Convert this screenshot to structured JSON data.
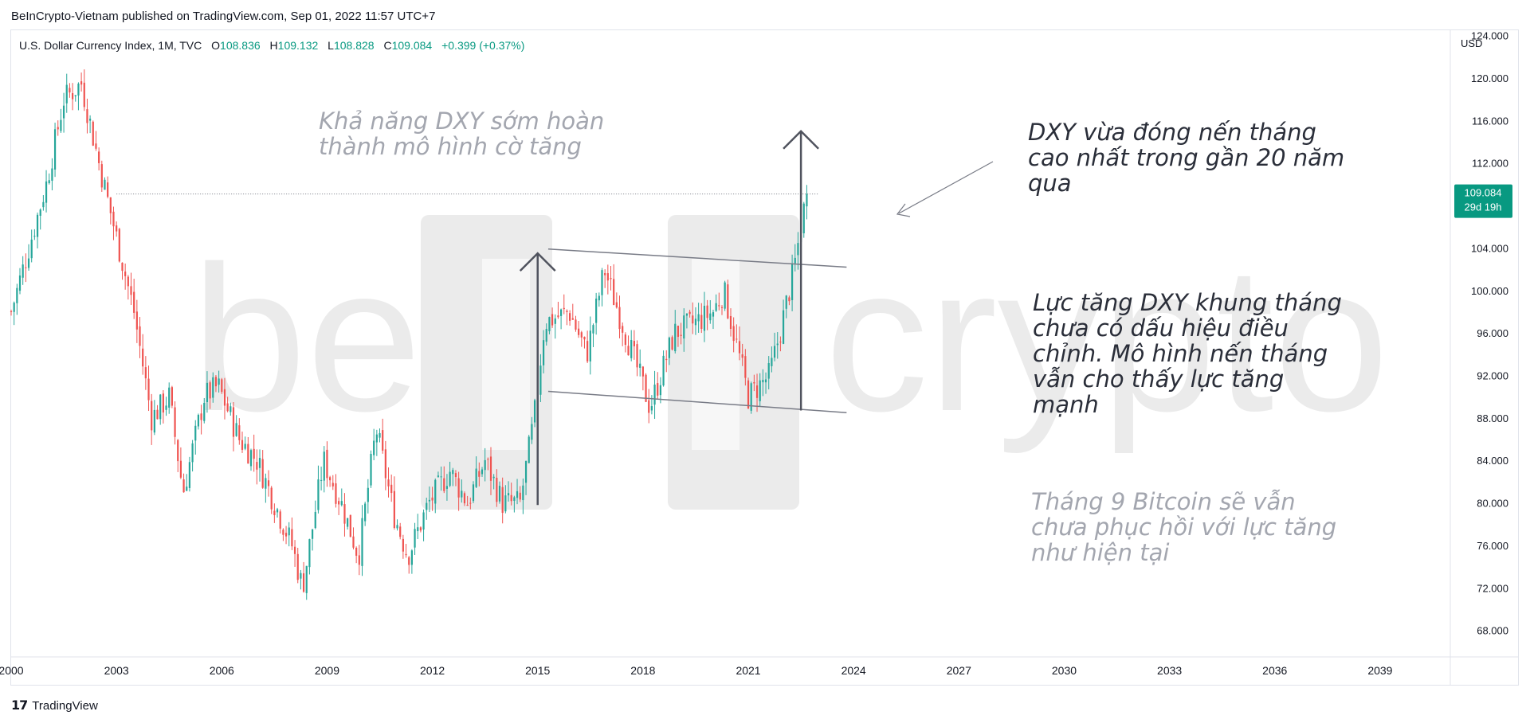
{
  "header": {
    "published": "BeInCrypto-Vietnam published on TradingView.com, Sep 01, 2022 11:57 UTC+7"
  },
  "legend": {
    "symbol": "U.S. Dollar Currency Index, 1M, TVC",
    "o_label": "O",
    "o_value": "108.836",
    "h_label": "H",
    "h_value": "109.132",
    "l_label": "L",
    "l_value": "108.828",
    "c_label": "C",
    "c_value": "109.084",
    "change": "+0.399 (+0.37%)"
  },
  "price_badge": {
    "price": "109.084",
    "countdown": "29d 19h"
  },
  "annotations": {
    "flag_title": [
      "Khả năng DXY sớm hoàn",
      "thành mô hình cờ tăng"
    ],
    "highest_close": [
      "DXY vừa đóng nến tháng",
      "cao nhất trong gần 20 năm",
      "qua"
    ],
    "momentum": [
      "Lực tăng DXY khung tháng",
      "chưa có dấu hiệu điều",
      "chỉnh. Mô hình nến tháng",
      "vẫn cho thấy lực tăng",
      "mạnh"
    ],
    "bitcoin": [
      "Tháng 9 Bitcoin sẽ vẫn",
      "chưa phục hồi với lực tăng",
      "như hiện tại"
    ]
  },
  "watermark": {
    "left": "be",
    "right": "crypto"
  },
  "footer": {
    "brand": "TradingView"
  },
  "colors": {
    "up": "#26a69a",
    "down": "#ef5350",
    "line": "#787b86",
    "badge": "#089981",
    "watermark": "#ebebeb"
  },
  "chart_data": {
    "type": "candlestick",
    "title": "U.S. Dollar Currency Index, 1M, TVC",
    "currency_label": "USD",
    "x_ticks": [
      "2000",
      "2003",
      "2006",
      "2009",
      "2012",
      "2015",
      "2018",
      "2021",
      "2024",
      "2027",
      "2030",
      "2033",
      "2036",
      "2039"
    ],
    "y_ticks": [
      "124.000",
      "120.000",
      "116.000",
      "112.000",
      "108.000",
      "104.000",
      "100.000",
      "96.000",
      "92.000",
      "88.000",
      "84.000",
      "80.000",
      "76.000",
      "72.000",
      "68.000"
    ],
    "ylim": [
      65.5,
      124.5
    ],
    "xlim": [
      2000.0,
      2041.0
    ],
    "last_close": 109.084,
    "close_path": [
      [
        2000.0,
        98
      ],
      [
        2000.5,
        104
      ],
      [
        2001.0,
        110
      ],
      [
        2001.5,
        118
      ],
      [
        2002.0,
        119.5
      ],
      [
        2002.5,
        112
      ],
      [
        2003.0,
        105
      ],
      [
        2003.5,
        98
      ],
      [
        2004.0,
        88
      ],
      [
        2004.5,
        90
      ],
      [
        2004.9,
        81
      ],
      [
        2005.5,
        90
      ],
      [
        2005.9,
        91
      ],
      [
        2006.5,
        86
      ],
      [
        2007.0,
        84
      ],
      [
        2007.5,
        80
      ],
      [
        2008.0,
        76
      ],
      [
        2008.3,
        72
      ],
      [
        2008.9,
        84
      ],
      [
        2009.4,
        80
      ],
      [
        2009.9,
        75
      ],
      [
        2010.4,
        87
      ],
      [
        2010.9,
        79
      ],
      [
        2011.3,
        75
      ],
      [
        2011.9,
        80
      ],
      [
        2012.5,
        83
      ],
      [
        2013.0,
        80
      ],
      [
        2013.5,
        84
      ],
      [
        2014.0,
        80
      ],
      [
        2014.5,
        80
      ],
      [
        2014.9,
        88
      ],
      [
        2015.2,
        97
      ],
      [
        2015.9,
        98
      ],
      [
        2016.4,
        94
      ],
      [
        2016.9,
        102
      ],
      [
        2017.4,
        97
      ],
      [
        2017.9,
        92
      ],
      [
        2018.2,
        89
      ],
      [
        2018.9,
        96
      ],
      [
        2019.5,
        97
      ],
      [
        2020.0,
        98
      ],
      [
        2020.3,
        100
      ],
      [
        2020.8,
        93
      ],
      [
        2021.0,
        90
      ],
      [
        2021.6,
        92
      ],
      [
        2021.9,
        96
      ],
      [
        2022.3,
        102
      ],
      [
        2022.6,
        108
      ],
      [
        2022.67,
        109.084
      ]
    ],
    "horizontal_level": 109.084,
    "flag_channel": {
      "upper": [
        [
          2015.3,
          103.9
        ],
        [
          2023.8,
          102.2
        ]
      ],
      "lower": [
        [
          2015.3,
          90.5
        ],
        [
          2023.8,
          88.5
        ]
      ]
    },
    "arrows": [
      {
        "x": 2015.0,
        "from": 79.8,
        "to": 103.5
      },
      {
        "x": 2022.5,
        "from": 88.7,
        "to": 115.0
      }
    ]
  }
}
